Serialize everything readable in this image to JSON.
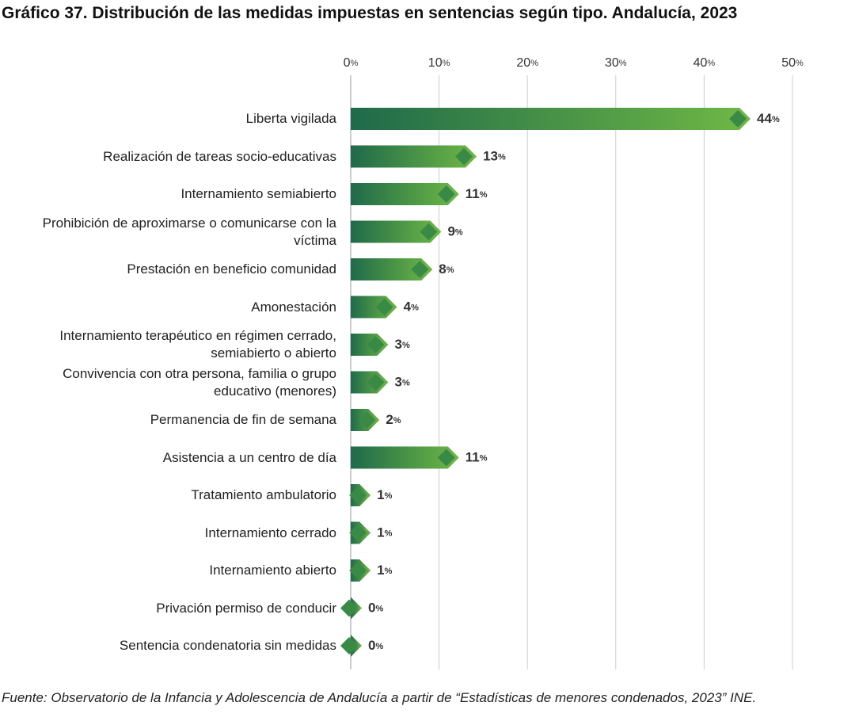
{
  "chart_data": {
    "type": "hbar",
    "title": "Gráfico 37. Distribución de las medidas impuestas en sentencias según tipo. Andalucía, 2023",
    "categories": [
      "Liberta vigilada",
      "Realización de tareas socio-educativas",
      "Internamiento semiabierto",
      "Prohibición de aproximarse o comunicarse con la víctima",
      "Prestación en beneficio comunidad",
      "Amonestación",
      "Internamiento terapéutico en régimen cerrado, semiabierto o abierto",
      "Convivencia con otra persona, familia o grupo educativo (menores)",
      "Permanencia de fin de semana",
      "Asistencia a un centro de día",
      "Tratamiento ambulatorio",
      "Internamiento cerrado",
      "Internamiento abierto",
      "Privación permiso de conducir",
      "Sentencia condenatoria sin medidas"
    ],
    "values": [
      44,
      13,
      11,
      9,
      8,
      4,
      3,
      3,
      2,
      11,
      1,
      1,
      1,
      0,
      0
    ],
    "value_labels": [
      "44%",
      "13%",
      "11%",
      "9%",
      "8%",
      "4%",
      "3%",
      "3%",
      "2%",
      "11%",
      "1%",
      "1%",
      "1%",
      "0%",
      "0%"
    ],
    "xlim": [
      0,
      50
    ],
    "xticks": [
      {
        "value": 0,
        "label": "0%"
      },
      {
        "value": 10,
        "label": "10%"
      },
      {
        "value": 20,
        "label": "20%"
      },
      {
        "value": 30,
        "label": "30%"
      },
      {
        "value": 40,
        "label": "40%"
      },
      {
        "value": 50,
        "label": "50%"
      }
    ],
    "grid": true,
    "colors": [
      "#1f6a4a",
      "#6fb845"
    ],
    "marker_color": "#3a8a47",
    "source": "Fuente: Observatorio de la Infancia y Adolescencia de Andalucía a partir de “Estadísticas de menores condenados, 2023” INE."
  }
}
